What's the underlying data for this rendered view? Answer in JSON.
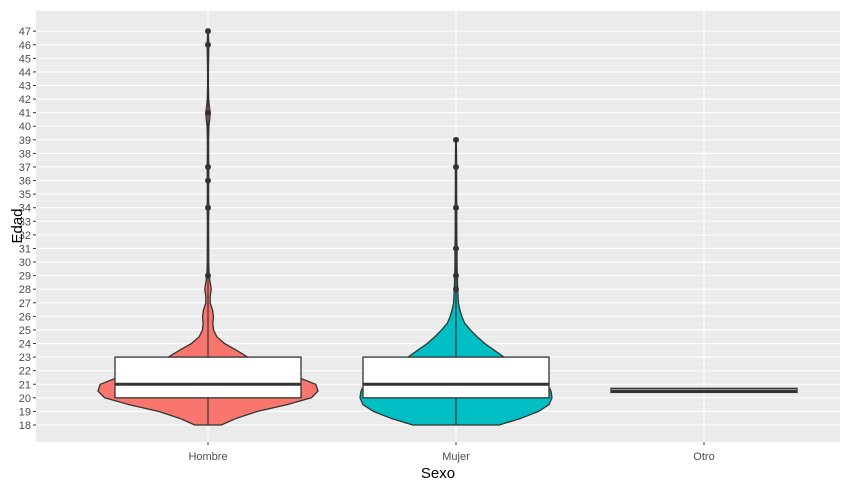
{
  "chart_data": {
    "type": "violin",
    "title": "",
    "xlabel": "Sexo",
    "ylabel": "Edad",
    "categories": [
      "Hombre",
      "Mujer",
      "Otro"
    ],
    "ylim": [
      17,
      48
    ],
    "y_ticks": [
      18,
      19,
      20,
      21,
      22,
      23,
      24,
      25,
      26,
      27,
      28,
      29,
      30,
      31,
      32,
      33,
      34,
      35,
      36,
      37,
      38,
      39,
      40,
      41,
      42,
      43,
      44,
      45,
      46,
      47
    ],
    "grid": true,
    "legend": "none",
    "colors": {
      "Hombre": "#F8766D",
      "Mujer": "#00BFC4",
      "Otro": "#00BA38"
    },
    "boxplots": [
      {
        "category": "Hombre",
        "q1": 20,
        "median": 21,
        "q3": 23
      },
      {
        "category": "Mujer",
        "q1": 20,
        "median": 21,
        "q3": 23
      },
      {
        "category": "Otro",
        "q1": 20.4,
        "median": 20.5,
        "q3": 20.7
      }
    ],
    "outliers": {
      "Hombre": [
        29,
        34,
        36,
        37,
        41,
        46,
        47
      ],
      "Mujer": [
        28,
        29,
        31,
        34,
        37,
        39
      ],
      "Otro": []
    },
    "violins": {
      "Hombre": {
        "y": [
          18,
          18.5,
          19,
          19.5,
          20,
          20.5,
          21,
          21.5,
          22,
          22.5,
          23,
          23.5,
          24,
          24.5,
          25,
          25.5,
          26,
          26.5,
          27,
          27.5,
          28,
          28.5,
          29,
          29.5,
          30,
          31,
          32,
          33,
          34,
          35,
          36,
          37,
          38,
          39,
          40,
          40.5,
          41,
          41.5,
          42,
          43,
          44,
          45,
          46,
          47
        ],
        "density": [
          0.12,
          0.26,
          0.45,
          0.72,
          0.94,
          1.0,
          0.98,
          0.82,
          0.58,
          0.44,
          0.36,
          0.26,
          0.15,
          0.08,
          0.05,
          0.045,
          0.05,
          0.04,
          0.02,
          0.02,
          0.03,
          0.02,
          0.01,
          0.008,
          0.006,
          0.006,
          0.005,
          0.005,
          0.007,
          0.005,
          0.006,
          0.007,
          0.005,
          0.005,
          0.008,
          0.015,
          0.02,
          0.012,
          0.006,
          0.004,
          0.004,
          0.005,
          0.007,
          0.003
        ]
      },
      "Mujer": {
        "y": [
          18,
          18.5,
          19,
          19.5,
          20,
          20.5,
          21,
          21.5,
          22,
          22.5,
          23,
          23.5,
          24,
          24.5,
          25,
          25.5,
          26,
          26.5,
          27,
          28,
          29,
          30,
          31,
          32,
          33,
          34,
          35,
          36,
          37,
          38,
          39
        ],
        "density": [
          0.45,
          0.68,
          0.86,
          0.97,
          1.0,
          0.99,
          0.95,
          0.86,
          0.72,
          0.6,
          0.5,
          0.4,
          0.3,
          0.22,
          0.15,
          0.09,
          0.06,
          0.04,
          0.025,
          0.018,
          0.014,
          0.01,
          0.01,
          0.008,
          0.007,
          0.008,
          0.006,
          0.006,
          0.006,
          0.005,
          0.003
        ]
      },
      "Otro": {
        "y": [
          20.4,
          20.55,
          20.7
        ],
        "density": [
          0.0,
          0.0,
          0.0
        ]
      }
    }
  }
}
